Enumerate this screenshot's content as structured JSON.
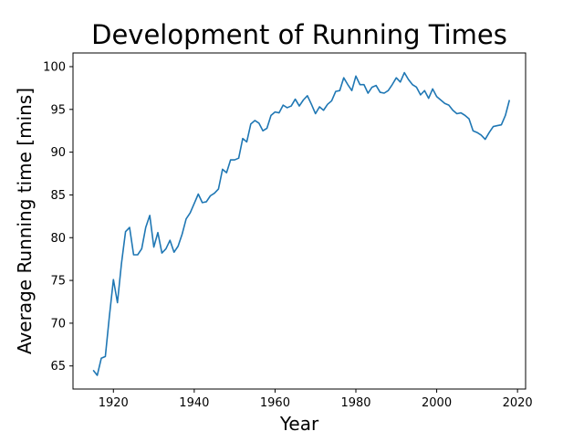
{
  "chart_data": {
    "type": "line",
    "title": "Development of Running Times",
    "xlabel": "Year",
    "ylabel": "Average Running time [mins]",
    "xlim": [
      1910,
      2022
    ],
    "ylim": [
      62.3,
      101.6
    ],
    "xticks": [
      1920,
      1940,
      1960,
      1980,
      2000,
      2020
    ],
    "yticks": [
      65,
      70,
      75,
      80,
      85,
      90,
      95,
      100
    ],
    "grid": false,
    "legend": "none",
    "color": "#1f77b4",
    "series": [
      {
        "x": [
          1915,
          1916,
          1917,
          1918,
          1919,
          1920,
          1921,
          1922,
          1923,
          1924,
          1925,
          1926,
          1927,
          1928,
          1929,
          1930,
          1931,
          1932,
          1933,
          1934,
          1935,
          1936,
          1937,
          1938,
          1939,
          1940,
          1941,
          1942,
          1943,
          1944,
          1945,
          1946,
          1947,
          1948,
          1949,
          1950,
          1951,
          1952,
          1953,
          1954,
          1955,
          1956,
          1957,
          1958,
          1959,
          1960,
          1961,
          1962,
          1963,
          1964,
          1965,
          1966,
          1967,
          1968,
          1969,
          1970,
          1971,
          1972,
          1973,
          1974,
          1975,
          1976,
          1977,
          1978,
          1979,
          1980,
          1981,
          1982,
          1983,
          1984,
          1985,
          1986,
          1987,
          1988,
          1989,
          1990,
          1991,
          1992,
          1993,
          1994,
          1995,
          1996,
          1997,
          1998,
          1999,
          2000,
          2001,
          2002,
          2003,
          2004,
          2005,
          2006,
          2007,
          2008,
          2009,
          2010,
          2011,
          2012,
          2013,
          2014,
          2015,
          2016,
          2017,
          2018
        ],
        "y": [
          64.5,
          63.9,
          65.9,
          66.1,
          70.8,
          75.1,
          72.4,
          77.0,
          80.7,
          81.2,
          78.0,
          78.0,
          78.7,
          81.2,
          82.6,
          78.9,
          80.6,
          78.2,
          78.7,
          79.7,
          78.3,
          79.0,
          80.4,
          82.2,
          82.9,
          84.0,
          85.1,
          84.1,
          84.2,
          84.9,
          85.2,
          85.7,
          88.0,
          87.6,
          89.1,
          89.1,
          89.3,
          91.6,
          91.2,
          93.3,
          93.7,
          93.4,
          92.5,
          92.8,
          94.3,
          94.7,
          94.6,
          95.5,
          95.2,
          95.4,
          96.2,
          95.4,
          96.1,
          96.6,
          95.6,
          94.5,
          95.3,
          94.9,
          95.6,
          96.0,
          97.1,
          97.2,
          98.7,
          97.9,
          97.2,
          98.9,
          97.9,
          97.9,
          96.9,
          97.6,
          97.8,
          97.0,
          96.9,
          97.2,
          97.9,
          98.7,
          98.2,
          99.3,
          98.5,
          97.9,
          97.6,
          96.7,
          97.2,
          96.3,
          97.4,
          96.5,
          96.1,
          95.7,
          95.5,
          94.9,
          94.5,
          94.6,
          94.3,
          93.9,
          92.5,
          92.3,
          92.0,
          91.5,
          92.3,
          93.0,
          93.1,
          93.2,
          94.3,
          96.1
        ]
      }
    ]
  }
}
